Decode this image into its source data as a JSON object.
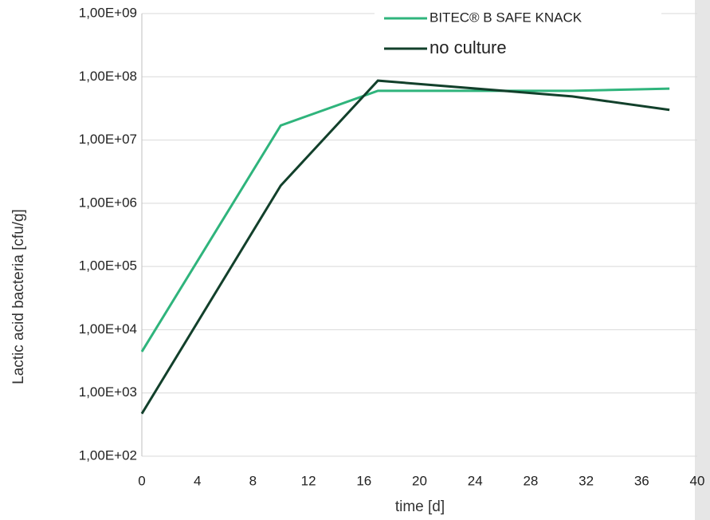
{
  "chart_data": {
    "type": "line",
    "x_label": "time [d]",
    "y_label": "Lactic acid bacteria [cfu/g]",
    "x": [
      0,
      10,
      17,
      31,
      38
    ],
    "series": [
      {
        "name": "BITEC® B SAFE KNACK",
        "color": "#2fb47c",
        "values": [
          4500,
          17000000,
          60000000,
          60000000,
          65000000
        ]
      },
      {
        "name": "no culture",
        "color": "#12402b",
        "values": [
          470,
          1900000,
          87000000,
          49000000,
          30000000
        ]
      }
    ],
    "xlim": [
      0,
      40
    ],
    "xticks": [
      0,
      4,
      8,
      12,
      16,
      20,
      24,
      28,
      32,
      36,
      40
    ],
    "ylim": [
      100,
      1000000000
    ],
    "log_y": true,
    "yticks": [
      {
        "value": 100,
        "label": "1,00E+02"
      },
      {
        "value": 1000,
        "label": "1,00E+03"
      },
      {
        "value": 10000,
        "label": "1,00E+04"
      },
      {
        "value": 100000,
        "label": "1,00E+05"
      },
      {
        "value": 1000000,
        "label": "1,00E+06"
      },
      {
        "value": 10000000,
        "label": "1,00E+07"
      },
      {
        "value": 100000000,
        "label": "1,00E+08"
      },
      {
        "value": 1000000000,
        "label": "1,00E+09"
      }
    ],
    "grid": true,
    "legend": "top"
  }
}
